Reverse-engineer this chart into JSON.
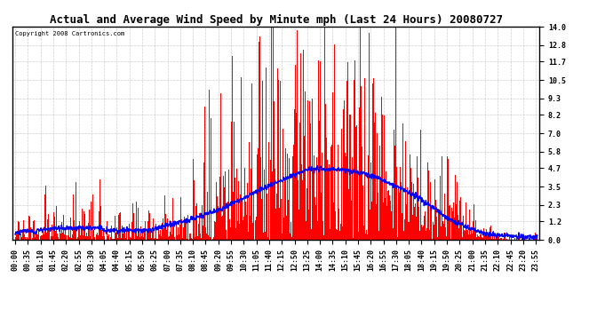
{
  "title": "Actual and Average Wind Speed by Minute mph (Last 24 Hours) 20080727",
  "copyright": "Copyright 2008 Cartronics.com",
  "bar_color": "#FF0000",
  "line_color": "#0000FF",
  "background_color": "#FFFFFF",
  "grid_color": "#BBBBBB",
  "yticks": [
    0.0,
    1.2,
    2.3,
    3.5,
    4.7,
    5.8,
    7.0,
    8.2,
    9.3,
    10.5,
    11.7,
    12.8,
    14.0
  ],
  "ylim": [
    0.0,
    14.0
  ],
  "xtick_step": 35,
  "n_minutes": 1440,
  "title_fontsize": 9,
  "tick_fontsize": 6,
  "copyright_fontsize": 5
}
